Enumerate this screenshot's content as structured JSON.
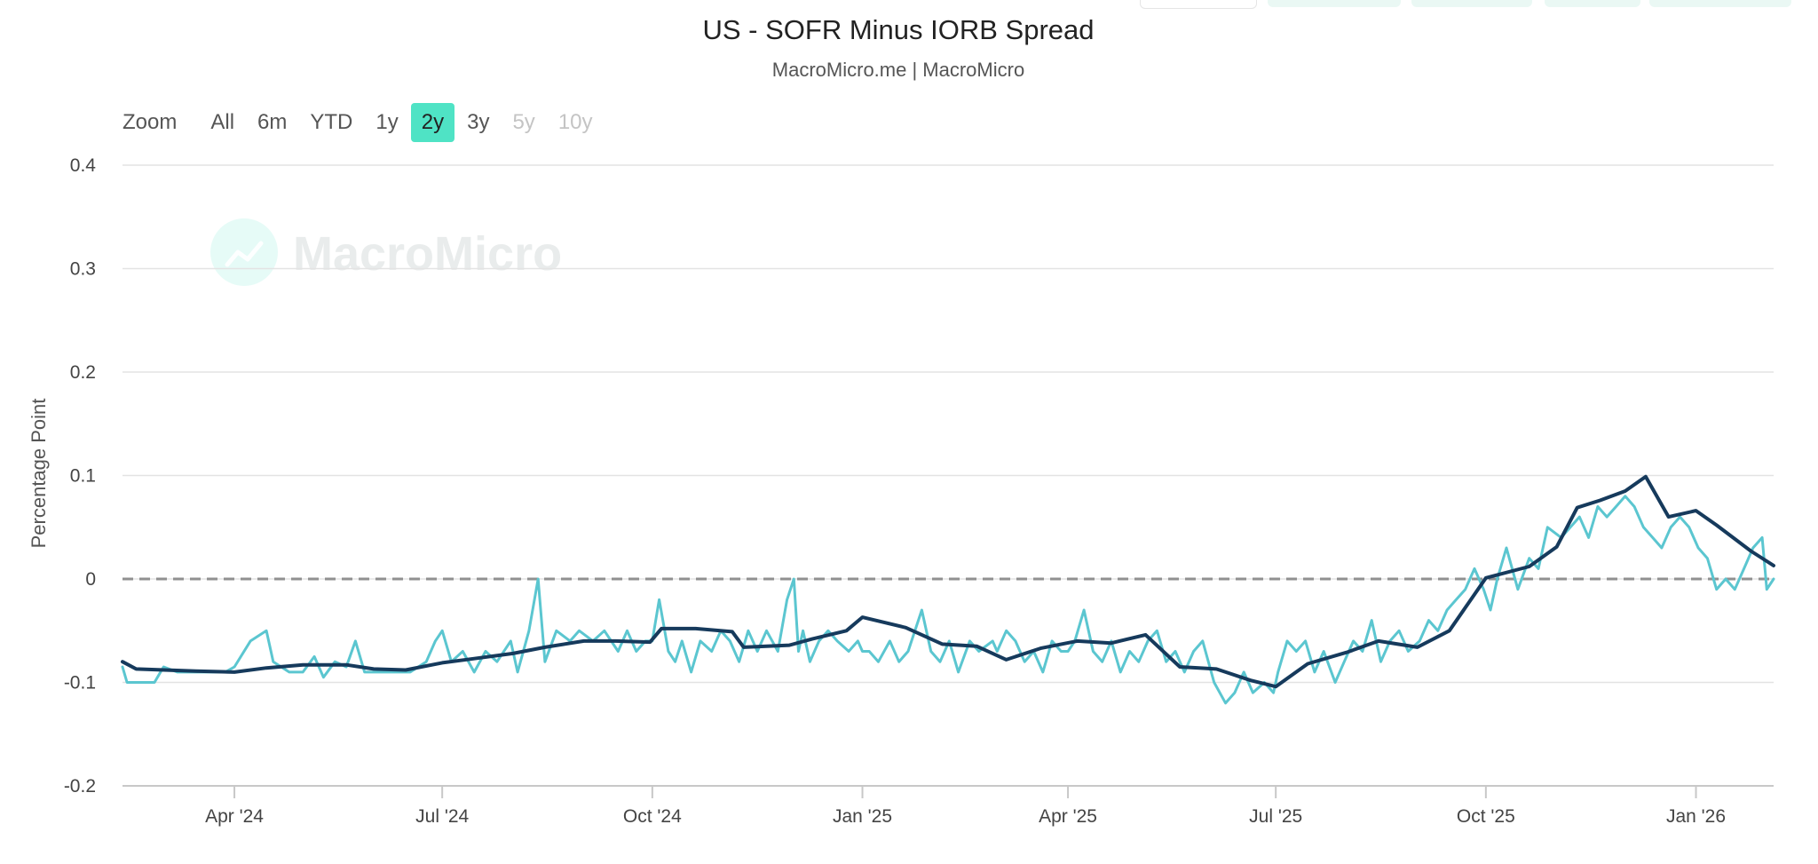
{
  "chart_data": {
    "type": "line",
    "title": "US - SOFR Minus IORB Spread",
    "subtitle": "MacroMicro.me | MacroMicro",
    "ylabel": "Percentage Point",
    "ylim": [
      -0.2,
      0.4
    ],
    "yticks": [
      0.4,
      0.3,
      0.2,
      0.1,
      0,
      -0.1,
      -0.2
    ],
    "ytick_labels": [
      "0.4",
      "0.3",
      "0.2",
      "0.1",
      "0",
      "-0.1",
      "-0.2"
    ],
    "xlim": [
      "2024-02-12",
      "2026-02-04"
    ],
    "xticks": [
      {
        "date": "2024-04-01",
        "label": "Apr '24"
      },
      {
        "date": "2024-07-01",
        "label": "Jul '24"
      },
      {
        "date": "2024-10-01",
        "label": "Oct '24"
      },
      {
        "date": "2025-01-01",
        "label": "Jan '25"
      },
      {
        "date": "2025-04-01",
        "label": "Apr '25"
      },
      {
        "date": "2025-07-01",
        "label": "Jul '25"
      },
      {
        "date": "2025-10-01",
        "label": "Oct '25"
      },
      {
        "date": "2026-01-01",
        "label": "Jan '26"
      }
    ],
    "reference_line": {
      "y": 0,
      "style": "dashed",
      "color": "#909090"
    },
    "grid": true,
    "legend": "none",
    "series": [
      {
        "color": "#5bc6d0",
        "points": [
          [
            "2024-02-12",
            -0.085
          ],
          [
            "2024-02-14",
            -0.1
          ],
          [
            "2024-02-19",
            -0.1
          ],
          [
            "2024-02-26",
            -0.1
          ],
          [
            "2024-03-01",
            -0.085
          ],
          [
            "2024-03-07",
            -0.09
          ],
          [
            "2024-03-14",
            -0.09
          ],
          [
            "2024-03-21",
            -0.09
          ],
          [
            "2024-03-28",
            -0.09
          ],
          [
            "2024-04-01",
            -0.085
          ],
          [
            "2024-04-08",
            -0.06
          ],
          [
            "2024-04-15",
            -0.05
          ],
          [
            "2024-04-18",
            -0.08
          ],
          [
            "2024-04-25",
            -0.09
          ],
          [
            "2024-05-01",
            -0.09
          ],
          [
            "2024-05-06",
            -0.075
          ],
          [
            "2024-05-10",
            -0.095
          ],
          [
            "2024-05-15",
            -0.08
          ],
          [
            "2024-05-20",
            -0.085
          ],
          [
            "2024-05-24",
            -0.06
          ],
          [
            "2024-05-28",
            -0.09
          ],
          [
            "2024-06-03",
            -0.09
          ],
          [
            "2024-06-10",
            -0.09
          ],
          [
            "2024-06-17",
            -0.09
          ],
          [
            "2024-06-24",
            -0.08
          ],
          [
            "2024-06-28",
            -0.06
          ],
          [
            "2024-07-01",
            -0.05
          ],
          [
            "2024-07-05",
            -0.08
          ],
          [
            "2024-07-10",
            -0.07
          ],
          [
            "2024-07-15",
            -0.09
          ],
          [
            "2024-07-20",
            -0.07
          ],
          [
            "2024-07-25",
            -0.08
          ],
          [
            "2024-07-31",
            -0.06
          ],
          [
            "2024-08-03",
            -0.09
          ],
          [
            "2024-08-08",
            -0.05
          ],
          [
            "2024-08-12",
            0.0
          ],
          [
            "2024-08-15",
            -0.08
          ],
          [
            "2024-08-20",
            -0.05
          ],
          [
            "2024-08-26",
            -0.06
          ],
          [
            "2024-08-30",
            -0.05
          ],
          [
            "2024-09-05",
            -0.06
          ],
          [
            "2024-09-10",
            -0.05
          ],
          [
            "2024-09-16",
            -0.07
          ],
          [
            "2024-09-20",
            -0.05
          ],
          [
            "2024-09-24",
            -0.07
          ],
          [
            "2024-09-28",
            -0.06
          ],
          [
            "2024-10-01",
            -0.06
          ],
          [
            "2024-10-04",
            -0.02
          ],
          [
            "2024-10-08",
            -0.07
          ],
          [
            "2024-10-11",
            -0.08
          ],
          [
            "2024-10-14",
            -0.06
          ],
          [
            "2024-10-18",
            -0.09
          ],
          [
            "2024-10-22",
            -0.06
          ],
          [
            "2024-10-27",
            -0.07
          ],
          [
            "2024-10-31",
            -0.05
          ],
          [
            "2024-11-04",
            -0.06
          ],
          [
            "2024-11-08",
            -0.08
          ],
          [
            "2024-11-12",
            -0.05
          ],
          [
            "2024-11-16",
            -0.07
          ],
          [
            "2024-11-20",
            -0.05
          ],
          [
            "2024-11-25",
            -0.07
          ],
          [
            "2024-11-29",
            -0.02
          ],
          [
            "2024-12-02",
            0.0
          ],
          [
            "2024-12-04",
            -0.07
          ],
          [
            "2024-12-06",
            -0.05
          ],
          [
            "2024-12-09",
            -0.08
          ],
          [
            "2024-12-13",
            -0.06
          ],
          [
            "2024-12-17",
            -0.05
          ],
          [
            "2024-12-21",
            -0.06
          ],
          [
            "2024-12-26",
            -0.07
          ],
          [
            "2024-12-30",
            -0.06
          ],
          [
            "2025-01-01",
            -0.07
          ],
          [
            "2025-01-04",
            -0.07
          ],
          [
            "2025-01-08",
            -0.08
          ],
          [
            "2025-01-13",
            -0.06
          ],
          [
            "2025-01-17",
            -0.08
          ],
          [
            "2025-01-21",
            -0.07
          ],
          [
            "2025-01-27",
            -0.03
          ],
          [
            "2025-01-31",
            -0.07
          ],
          [
            "2025-02-04",
            -0.08
          ],
          [
            "2025-02-08",
            -0.06
          ],
          [
            "2025-02-12",
            -0.09
          ],
          [
            "2025-02-17",
            -0.06
          ],
          [
            "2025-02-21",
            -0.07
          ],
          [
            "2025-02-27",
            -0.06
          ],
          [
            "2025-03-01",
            -0.07
          ],
          [
            "2025-03-05",
            -0.05
          ],
          [
            "2025-03-09",
            -0.06
          ],
          [
            "2025-03-13",
            -0.08
          ],
          [
            "2025-03-17",
            -0.07
          ],
          [
            "2025-03-21",
            -0.09
          ],
          [
            "2025-03-25",
            -0.06
          ],
          [
            "2025-03-29",
            -0.07
          ],
          [
            "2025-04-01",
            -0.07
          ],
          [
            "2025-04-04",
            -0.06
          ],
          [
            "2025-04-08",
            -0.03
          ],
          [
            "2025-04-12",
            -0.07
          ],
          [
            "2025-04-16",
            -0.08
          ],
          [
            "2025-04-20",
            -0.06
          ],
          [
            "2025-04-24",
            -0.09
          ],
          [
            "2025-04-28",
            -0.07
          ],
          [
            "2025-05-02",
            -0.08
          ],
          [
            "2025-05-06",
            -0.06
          ],
          [
            "2025-05-10",
            -0.05
          ],
          [
            "2025-05-14",
            -0.08
          ],
          [
            "2025-05-18",
            -0.07
          ],
          [
            "2025-05-22",
            -0.09
          ],
          [
            "2025-05-26",
            -0.07
          ],
          [
            "2025-05-30",
            -0.06
          ],
          [
            "2025-06-04",
            -0.1
          ],
          [
            "2025-06-09",
            -0.12
          ],
          [
            "2025-06-13",
            -0.11
          ],
          [
            "2025-06-17",
            -0.09
          ],
          [
            "2025-06-21",
            -0.11
          ],
          [
            "2025-06-26",
            -0.1
          ],
          [
            "2025-06-30",
            -0.11
          ],
          [
            "2025-07-02",
            -0.09
          ],
          [
            "2025-07-06",
            -0.06
          ],
          [
            "2025-07-10",
            -0.07
          ],
          [
            "2025-07-14",
            -0.06
          ],
          [
            "2025-07-18",
            -0.09
          ],
          [
            "2025-07-22",
            -0.07
          ],
          [
            "2025-07-27",
            -0.1
          ],
          [
            "2025-07-31",
            -0.08
          ],
          [
            "2025-08-04",
            -0.06
          ],
          [
            "2025-08-08",
            -0.07
          ],
          [
            "2025-08-12",
            -0.04
          ],
          [
            "2025-08-16",
            -0.08
          ],
          [
            "2025-08-20",
            -0.06
          ],
          [
            "2025-08-24",
            -0.05
          ],
          [
            "2025-08-28",
            -0.07
          ],
          [
            "2025-09-02",
            -0.06
          ],
          [
            "2025-09-06",
            -0.04
          ],
          [
            "2025-09-10",
            -0.05
          ],
          [
            "2025-09-14",
            -0.03
          ],
          [
            "2025-09-18",
            -0.02
          ],
          [
            "2025-09-22",
            -0.01
          ],
          [
            "2025-09-26",
            0.01
          ],
          [
            "2025-09-30",
            -0.01
          ],
          [
            "2025-10-03",
            -0.03
          ],
          [
            "2025-10-06",
            0.0
          ],
          [
            "2025-10-10",
            0.03
          ],
          [
            "2025-10-15",
            -0.01
          ],
          [
            "2025-10-20",
            0.02
          ],
          [
            "2025-10-24",
            0.01
          ],
          [
            "2025-10-28",
            0.05
          ],
          [
            "2025-11-03",
            0.04
          ],
          [
            "2025-11-07",
            0.05
          ],
          [
            "2025-11-11",
            0.06
          ],
          [
            "2025-11-15",
            0.04
          ],
          [
            "2025-11-19",
            0.07
          ],
          [
            "2025-11-23",
            0.06
          ],
          [
            "2025-11-27",
            0.07
          ],
          [
            "2025-12-01",
            0.08
          ],
          [
            "2025-12-05",
            0.07
          ],
          [
            "2025-12-09",
            0.05
          ],
          [
            "2025-12-13",
            0.04
          ],
          [
            "2025-12-17",
            0.03
          ],
          [
            "2025-12-21",
            0.05
          ],
          [
            "2025-12-25",
            0.06
          ],
          [
            "2025-12-29",
            0.05
          ],
          [
            "2026-01-02",
            0.03
          ],
          [
            "2026-01-06",
            0.02
          ],
          [
            "2026-01-10",
            -0.01
          ],
          [
            "2026-01-14",
            0.0
          ],
          [
            "2026-01-18",
            -0.01
          ],
          [
            "2026-01-22",
            0.01
          ],
          [
            "2026-01-26",
            0.03
          ],
          [
            "2026-01-30",
            0.04
          ],
          [
            "2026-02-01",
            -0.01
          ],
          [
            "2026-02-04",
            0.0
          ]
        ]
      },
      {
        "color": "#163a5c",
        "points": [
          [
            "2024-02-12",
            -0.08
          ],
          [
            "2024-02-18",
            -0.087
          ],
          [
            "2024-03-15",
            -0.089
          ],
          [
            "2024-04-01",
            -0.09
          ],
          [
            "2024-04-15",
            -0.086
          ],
          [
            "2024-05-01",
            -0.083
          ],
          [
            "2024-05-20",
            -0.083
          ],
          [
            "2024-06-01",
            -0.087
          ],
          [
            "2024-06-15",
            -0.088
          ],
          [
            "2024-07-01",
            -0.081
          ],
          [
            "2024-07-15",
            -0.077
          ],
          [
            "2024-08-01",
            -0.072
          ],
          [
            "2024-08-15",
            -0.066
          ],
          [
            "2024-09-01",
            -0.06
          ],
          [
            "2024-09-15",
            -0.06
          ],
          [
            "2024-09-30",
            -0.061
          ],
          [
            "2024-10-05",
            -0.048
          ],
          [
            "2024-10-20",
            -0.048
          ],
          [
            "2024-11-05",
            -0.051
          ],
          [
            "2024-11-10",
            -0.066
          ],
          [
            "2024-11-30",
            -0.064
          ],
          [
            "2024-12-10",
            -0.058
          ],
          [
            "2024-12-25",
            -0.05
          ],
          [
            "2025-01-01",
            -0.037
          ],
          [
            "2025-01-20",
            -0.047
          ],
          [
            "2025-02-05",
            -0.063
          ],
          [
            "2025-02-20",
            -0.065
          ],
          [
            "2025-03-05",
            -0.078
          ],
          [
            "2025-03-20",
            -0.067
          ],
          [
            "2025-04-05",
            -0.06
          ],
          [
            "2025-04-20",
            -0.062
          ],
          [
            "2025-05-05",
            -0.054
          ],
          [
            "2025-05-20",
            -0.085
          ],
          [
            "2025-06-05",
            -0.087
          ],
          [
            "2025-06-20",
            -0.098
          ],
          [
            "2025-07-01",
            -0.104
          ],
          [
            "2025-07-15",
            -0.082
          ],
          [
            "2025-08-01",
            -0.071
          ],
          [
            "2025-08-15",
            -0.06
          ],
          [
            "2025-09-01",
            -0.066
          ],
          [
            "2025-09-15",
            -0.05
          ],
          [
            "2025-10-01",
            0.001
          ],
          [
            "2025-10-20",
            0.012
          ],
          [
            "2025-11-01",
            0.031
          ],
          [
            "2025-11-10",
            0.069
          ],
          [
            "2025-11-20",
            0.076
          ],
          [
            "2025-12-01",
            0.085
          ],
          [
            "2025-12-10",
            0.099
          ],
          [
            "2025-12-20",
            0.06
          ],
          [
            "2026-01-01",
            0.066
          ],
          [
            "2026-01-10",
            0.052
          ],
          [
            "2026-01-25",
            0.027
          ],
          [
            "2026-02-04",
            0.013
          ]
        ]
      }
    ]
  },
  "zoom": {
    "label": "Zoom",
    "options": [
      {
        "label": "All",
        "state": "normal"
      },
      {
        "label": "6m",
        "state": "normal"
      },
      {
        "label": "YTD",
        "state": "normal"
      },
      {
        "label": "1y",
        "state": "normal"
      },
      {
        "label": "2y",
        "state": "active"
      },
      {
        "label": "3y",
        "state": "normal"
      },
      {
        "label": "5y",
        "state": "disabled"
      },
      {
        "label": "10y",
        "state": "disabled"
      }
    ]
  },
  "watermark": {
    "text": "MacroMicro",
    "color": "#4fe3c5"
  },
  "colors": {
    "accent": "#4fe3c5",
    "grid": "#e3e3e3"
  }
}
